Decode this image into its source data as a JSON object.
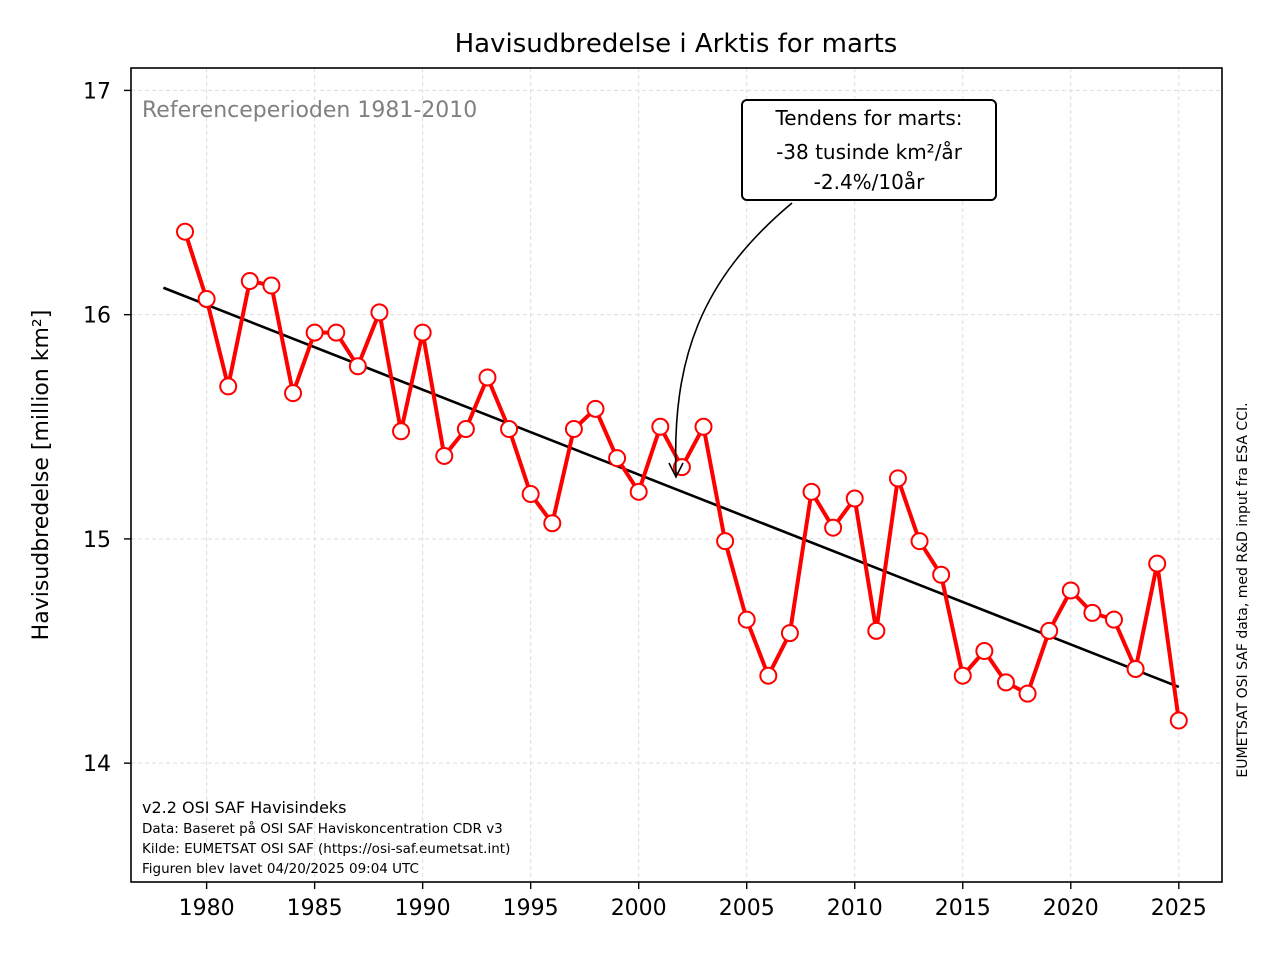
{
  "chart_data": {
    "type": "line",
    "title": "Havisudbredelse i Arktis for marts",
    "ylabel": "Havisudbredelse [million km²]",
    "xlabel": "",
    "xlim": [
      1976.5,
      2027
    ],
    "ylim": [
      13.47,
      17.1
    ],
    "x_ticks": [
      1980,
      1985,
      1990,
      1995,
      2000,
      2005,
      2010,
      2015,
      2020,
      2025
    ],
    "y_ticks": [
      14,
      15,
      16,
      17
    ],
    "grid": true,
    "x": [
      1979,
      1980,
      1981,
      1982,
      1983,
      1984,
      1985,
      1986,
      1987,
      1988,
      1989,
      1990,
      1991,
      1992,
      1993,
      1994,
      1995,
      1996,
      1997,
      1998,
      1999,
      2000,
      2001,
      2002,
      2003,
      2004,
      2005,
      2006,
      2007,
      2008,
      2009,
      2010,
      2011,
      2012,
      2013,
      2014,
      2015,
      2016,
      2017,
      2018,
      2019,
      2020,
      2021,
      2022,
      2023,
      2024,
      2025
    ],
    "series": [
      {
        "values": [
          16.37,
          16.07,
          15.68,
          16.15,
          16.13,
          15.65,
          15.92,
          15.92,
          15.77,
          16.01,
          15.48,
          15.92,
          15.37,
          15.49,
          15.72,
          15.49,
          15.2,
          15.07,
          15.49,
          15.58,
          15.36,
          15.21,
          15.5,
          15.32,
          15.5,
          14.99,
          14.64,
          14.39,
          14.58,
          15.21,
          15.05,
          15.18,
          14.59,
          15.27,
          14.99,
          14.84,
          14.39,
          14.5,
          14.36,
          14.31,
          14.59,
          14.77,
          14.67,
          14.64,
          14.42,
          14.89,
          14.19
        ],
        "color": "#ff0000"
      },
      {
        "kind": "trend",
        "x": [
          1978,
          2025
        ],
        "values": [
          16.12,
          14.34
        ],
        "color": "#000000"
      }
    ],
    "reference_text": "Referenceperioden 1981-2010",
    "annotation": {
      "line1": "Tendens for marts:",
      "line2": "-38 tusinde km²/år",
      "line3": "-2.4%/10år",
      "arrow_target": [
        2001.5,
        15.26
      ]
    },
    "footer": {
      "version": "v2.2 OSI SAF Havisindeks",
      "data": "Data: Baseret på OSI SAF Haviskoncentration CDR v3",
      "source": "Kilde: EUMETSAT OSI SAF (https://osi-saf.eumetsat.int)",
      "created": "Figuren blev lavet 04/20/2025 09:04 UTC"
    },
    "side_credit": "EUMETSAT OSI SAF data, med R&D input fra ESA CCI."
  }
}
